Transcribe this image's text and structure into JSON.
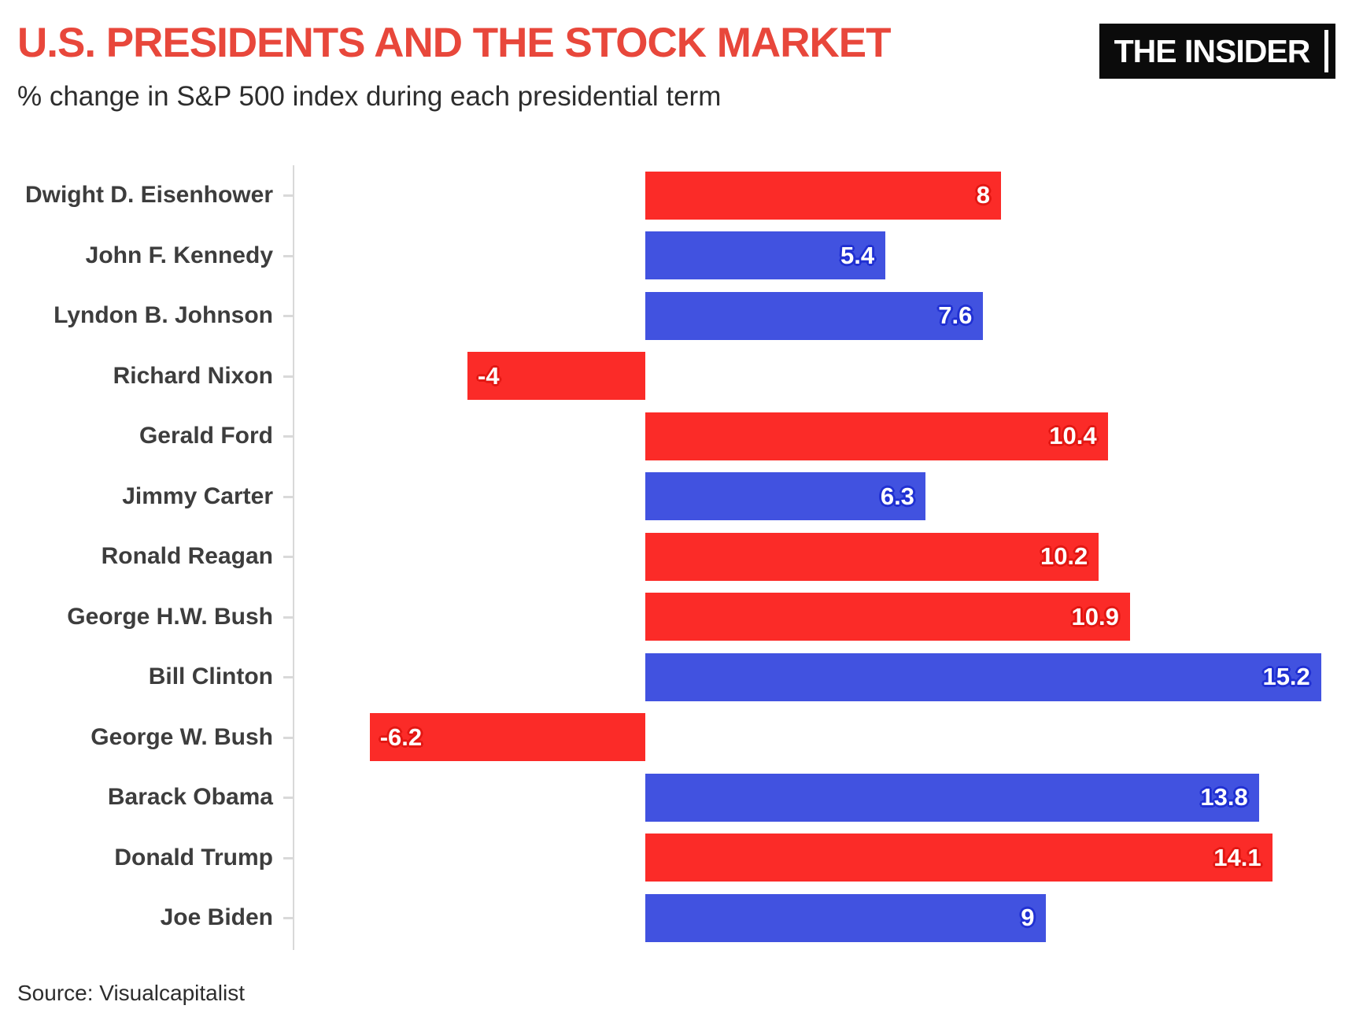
{
  "header": {
    "title": "U.S. PRESIDENTS AND THE STOCK MARKET",
    "subtitle": "% change in S&P 500 index during each presidential term",
    "logo": "THE INSIDER"
  },
  "footer": {
    "source": "Source: Visualcapitalist"
  },
  "colors": {
    "title": "#e8473b",
    "subtitle_text": "#2d2d2d",
    "category_text": "#3d3d3d",
    "value_text": "#ffffff",
    "republican_bar": "#fb2b28",
    "democrat_bar": "#4152e0",
    "republican_halo": "#e21713",
    "democrat_halo": "#2030d2",
    "axis_line": "#d9d9d9",
    "logo_bg": "#0b0b0b",
    "logo_text": "#ffffff",
    "background": "#ffffff"
  },
  "chart_data": {
    "type": "bar",
    "orientation": "horizontal",
    "title": "U.S. PRESIDENTS AND THE STOCK MARKET",
    "subtitle": "% change in S&P 500 index during each presidential term",
    "source": "Source: Visualcapitalist",
    "categories": [
      "Dwight D. Eisenhower",
      "John F. Kennedy",
      "Lyndon B. Johnson",
      "Richard Nixon",
      "Gerald Ford",
      "Jimmy Carter",
      "Ronald Reagan",
      "George H.W. Bush",
      "Bill Clinton",
      "George W. Bush",
      "Barack Obama",
      "Donald Trump",
      "Joe Biden"
    ],
    "values": [
      8,
      5.4,
      7.6,
      -4,
      10.4,
      6.3,
      10.2,
      10.9,
      15.2,
      -6.2,
      13.8,
      14.1,
      9
    ],
    "value_labels": [
      "8",
      "5.4",
      "7.6",
      "-4",
      "10.4",
      "6.3",
      "10.2",
      "10.9",
      "15.2",
      "-6.2",
      "13.8",
      "14.1",
      "9"
    ],
    "party": [
      "R",
      "D",
      "D",
      "R",
      "R",
      "D",
      "R",
      "R",
      "D",
      "R",
      "D",
      "R",
      "D"
    ],
    "xlim": [
      -8,
      16
    ],
    "grid": false,
    "legend": false,
    "value_label_position": "inside-end"
  }
}
